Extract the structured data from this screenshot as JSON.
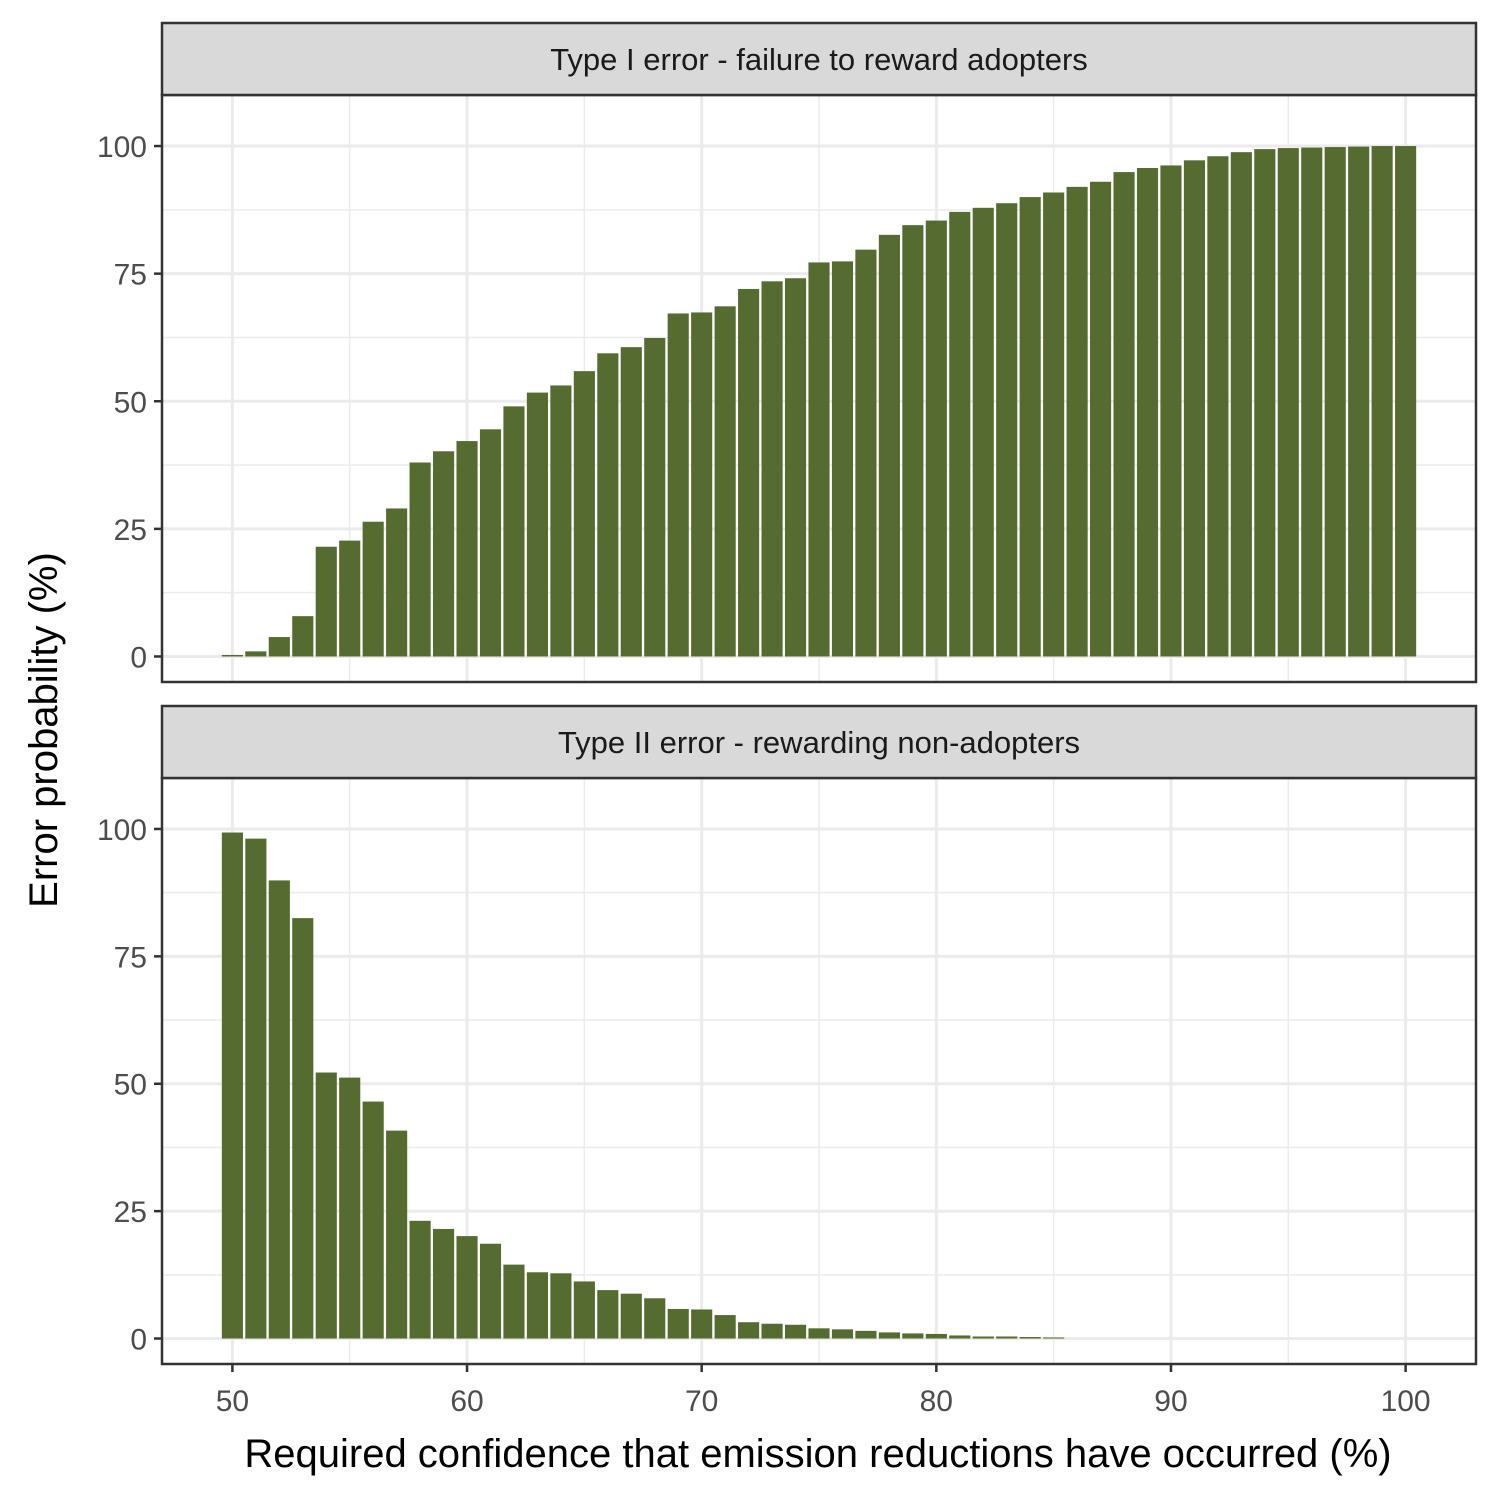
{
  "chart_data": {
    "type": "bar",
    "xlabel": "Required confidence that emission reductions have occurred (%)",
    "ylabel": "Error probability (%)",
    "x_ticks": [
      50,
      60,
      70,
      80,
      90,
      100
    ],
    "y_ticks": [
      0,
      25,
      50,
      75,
      100
    ],
    "xlim": [
      47,
      103
    ],
    "ylim": [
      -5,
      110
    ],
    "grid": true,
    "bar_color": "#556B2F",
    "x": [
      50,
      51,
      52,
      53,
      54,
      55,
      56,
      57,
      58,
      59,
      60,
      61,
      62,
      63,
      64,
      65,
      66,
      67,
      68,
      69,
      70,
      71,
      72,
      73,
      74,
      75,
      76,
      77,
      78,
      79,
      80,
      81,
      82,
      83,
      84,
      85,
      86,
      87,
      88,
      89,
      90,
      91,
      92,
      93,
      94,
      95,
      96,
      97,
      98,
      99,
      100
    ],
    "panels": [
      {
        "name": "Type I error - failure to reward adopters",
        "values": [
          0.3,
          1,
          3.8,
          7.9,
          21.5,
          22.7,
          26.4,
          29,
          38,
          40.2,
          42.2,
          44.5,
          49,
          51.7,
          53.1,
          55.9,
          59.4,
          60.6,
          62.4,
          67.2,
          67.4,
          68.6,
          72,
          73.5,
          74.1,
          77.2,
          77.4,
          79.7,
          82.6,
          84.5,
          85.4,
          87.1,
          87.9,
          88.8,
          90,
          90.9,
          92,
          93,
          94.9,
          95.7,
          96.2,
          97.2,
          98,
          98.8,
          99.4,
          99.6,
          99.7,
          99.8,
          99.9,
          100,
          100
        ]
      },
      {
        "name": "Type II error - rewarding non-adopters",
        "values": [
          99.3,
          98.1,
          89.9,
          82.5,
          52.2,
          51.2,
          46.5,
          40.8,
          23.1,
          21.5,
          20.1,
          18.6,
          14.5,
          13,
          12.8,
          11.2,
          9.5,
          8.8,
          7.9,
          5.8,
          5.7,
          4.6,
          3.2,
          2.9,
          2.7,
          2,
          1.8,
          1.5,
          1.2,
          1,
          0.9,
          0.6,
          0.4,
          0.4,
          0.3,
          0.2,
          0,
          0,
          0,
          0,
          0,
          0,
          0,
          0,
          0,
          0,
          0,
          0,
          0,
          0,
          0
        ]
      }
    ]
  }
}
